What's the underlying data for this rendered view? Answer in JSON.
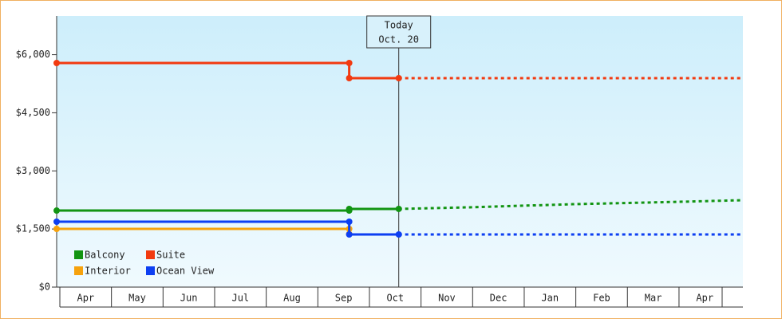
{
  "chart_data": {
    "type": "line",
    "categories": [
      "Apr",
      "May",
      "Jun",
      "Jul",
      "Aug",
      "Sep",
      "Oct",
      "Nov",
      "Dec",
      "Jan",
      "Feb",
      "Mar",
      "Apr"
    ],
    "xlim": [
      0,
      13.3
    ],
    "ylim": [
      0,
      7000
    ],
    "yticks": [
      {
        "value": 0,
        "label": "$0"
      },
      {
        "value": 1500,
        "label": "$1,500"
      },
      {
        "value": 3000,
        "label": "$3,000"
      },
      {
        "value": 4500,
        "label": "$4,500"
      },
      {
        "value": 6000,
        "label": "$6,000"
      }
    ],
    "today": {
      "x": 6.63,
      "label": [
        "Today",
        "Oct. 20"
      ]
    },
    "series": [
      {
        "name": "Balcony",
        "color": "#129412",
        "x": [
          0,
          5.67,
          5.67,
          6.63
        ],
        "values": [
          1976,
          1976,
          2018,
          2018
        ],
        "forecast_x": [
          6.63,
          8,
          10,
          12,
          13.3
        ],
        "forecast_values": [
          2018,
          2060,
          2140,
          2200,
          2244
        ]
      },
      {
        "name": "Suite",
        "color": "#f23a10",
        "x": [
          0,
          5.67,
          5.67,
          6.63
        ],
        "values": [
          5785,
          5785,
          5394,
          5394
        ],
        "forecast_x": [
          6.63,
          13.3
        ],
        "forecast_values": [
          5394,
          5394
        ]
      },
      {
        "name": "Interior",
        "color": "#f6a20d",
        "x": [
          0,
          5.67,
          5.67
        ],
        "values": [
          1503,
          1503,
          1370
        ]
      },
      {
        "name": "Ocean View",
        "color": "#0d3ff2",
        "x": [
          0,
          5.67,
          5.67,
          6.63
        ],
        "values": [
          1688,
          1688,
          1359,
          1359
        ],
        "forecast_x": [
          6.63,
          13.3
        ],
        "forecast_values": [
          1359,
          1359
        ]
      }
    ]
  }
}
